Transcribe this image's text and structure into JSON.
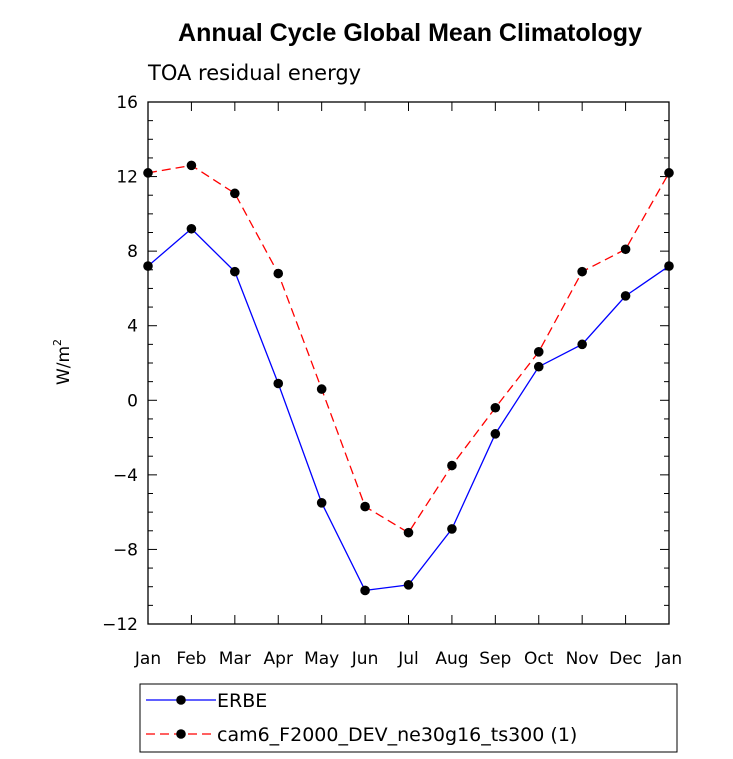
{
  "chart_data": {
    "type": "line",
    "title": "Annual Cycle Global Mean Climatology",
    "subtitle": "TOA residual energy",
    "ylabel": "W/m",
    "ylabel_superscript": "2",
    "xlabel": "",
    "categories": [
      "Jan",
      "Feb",
      "Mar",
      "Apr",
      "May",
      "Jun",
      "Jul",
      "Aug",
      "Sep",
      "Oct",
      "Nov",
      "Dec",
      "Jan"
    ],
    "ylim": [
      -12,
      16
    ],
    "yticks": [
      -12,
      -8,
      -4,
      0,
      4,
      8,
      12,
      16
    ],
    "ytick_labels": [
      "−12",
      "−8",
      "−4",
      "0",
      "4",
      "8",
      "12",
      "16"
    ],
    "grid": false,
    "legend_placement": "bottom",
    "series": [
      {
        "name": "ERBE",
        "color": "#0000ff",
        "dash": "solid",
        "marker": "filled-circle",
        "values": [
          7.2,
          9.2,
          6.9,
          0.9,
          -5.5,
          -10.2,
          -9.9,
          -6.9,
          -1.8,
          1.8,
          3.0,
          5.6,
          7.2
        ]
      },
      {
        "name": "cam6_F2000_DEV_ne30g16_ts300 (1)",
        "color": "#ff0000",
        "dash": "dashed",
        "marker": "filled-circle",
        "values": [
          12.2,
          12.6,
          11.1,
          6.8,
          0.6,
          -5.7,
          -7.1,
          -3.5,
          -0.4,
          2.6,
          6.9,
          8.1,
          12.2
        ]
      }
    ]
  }
}
